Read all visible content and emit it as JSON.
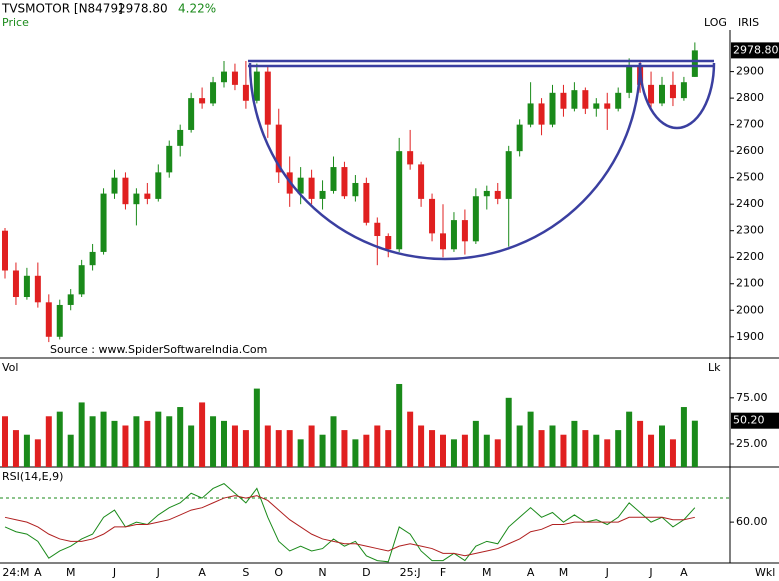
{
  "header": {
    "symbol": "TVSMOTOR [N8479]",
    "price": "2978.80",
    "change": "4.22%",
    "panel": "Price",
    "log": "LOG",
    "iris": "IRIS",
    "source": "Source : www.SpiderSoftwareIndia.Com"
  },
  "chart_data": [
    {
      "type": "candlestick",
      "up_color": "#1a8a1a",
      "down_color": "#e02020",
      "ohlc": [
        [
          2300,
          2310,
          2120,
          2150
        ],
        [
          2150,
          2180,
          2020,
          2050
        ],
        [
          2050,
          2160,
          2040,
          2130
        ],
        [
          2130,
          2180,
          2010,
          2030
        ],
        [
          2030,
          2060,
          1880,
          1900
        ],
        [
          1900,
          2040,
          1890,
          2020
        ],
        [
          2020,
          2080,
          2000,
          2060
        ],
        [
          2060,
          2190,
          2050,
          2170
        ],
        [
          2170,
          2250,
          2150,
          2220
        ],
        [
          2220,
          2460,
          2210,
          2440
        ],
        [
          2440,
          2530,
          2420,
          2500
        ],
        [
          2500,
          2520,
          2380,
          2400
        ],
        [
          2400,
          2460,
          2320,
          2440
        ],
        [
          2440,
          2480,
          2400,
          2420
        ],
        [
          2420,
          2550,
          2410,
          2520
        ],
        [
          2520,
          2640,
          2500,
          2620
        ],
        [
          2620,
          2700,
          2580,
          2680
        ],
        [
          2680,
          2820,
          2670,
          2800
        ],
        [
          2800,
          2840,
          2760,
          2780
        ],
        [
          2780,
          2880,
          2770,
          2860
        ],
        [
          2860,
          2940,
          2840,
          2900
        ],
        [
          2900,
          2930,
          2830,
          2850
        ],
        [
          2850,
          2940,
          2760,
          2790
        ],
        [
          2790,
          2930,
          2780,
          2900
        ],
        [
          2900,
          2920,
          2650,
          2700
        ],
        [
          2700,
          2760,
          2480,
          2520
        ],
        [
          2520,
          2580,
          2390,
          2440
        ],
        [
          2440,
          2540,
          2400,
          2500
        ],
        [
          2500,
          2530,
          2400,
          2420
        ],
        [
          2420,
          2490,
          2380,
          2450
        ],
        [
          2450,
          2580,
          2440,
          2540
        ],
        [
          2540,
          2560,
          2420,
          2430
        ],
        [
          2430,
          2510,
          2410,
          2480
        ],
        [
          2480,
          2500,
          2320,
          2330
        ],
        [
          2330,
          2350,
          2170,
          2280
        ],
        [
          2280,
          2290,
          2200,
          2230
        ],
        [
          2230,
          2650,
          2220,
          2600
        ],
        [
          2600,
          2680,
          2530,
          2550
        ],
        [
          2550,
          2560,
          2390,
          2420
        ],
        [
          2420,
          2440,
          2260,
          2290
        ],
        [
          2290,
          2400,
          2200,
          2230
        ],
        [
          2230,
          2370,
          2220,
          2340
        ],
        [
          2340,
          2380,
          2210,
          2260
        ],
        [
          2260,
          2460,
          2250,
          2430
        ],
        [
          2430,
          2470,
          2380,
          2450
        ],
        [
          2450,
          2480,
          2400,
          2420
        ],
        [
          2420,
          2620,
          2240,
          2600
        ],
        [
          2600,
          2720,
          2580,
          2700
        ],
        [
          2700,
          2860,
          2690,
          2780
        ],
        [
          2780,
          2800,
          2660,
          2700
        ],
        [
          2700,
          2850,
          2690,
          2820
        ],
        [
          2820,
          2850,
          2730,
          2760
        ],
        [
          2760,
          2860,
          2750,
          2830
        ],
        [
          2830,
          2840,
          2740,
          2760
        ],
        [
          2760,
          2800,
          2730,
          2780
        ],
        [
          2780,
          2820,
          2680,
          2760
        ],
        [
          2760,
          2840,
          2750,
          2820
        ],
        [
          2820,
          2950,
          2800,
          2920
        ],
        [
          2920,
          2940,
          2820,
          2850
        ],
        [
          2850,
          2900,
          2760,
          2780
        ],
        [
          2780,
          2880,
          2770,
          2850
        ],
        [
          2850,
          2900,
          2770,
          2800
        ],
        [
          2800,
          2880,
          2790,
          2860
        ],
        [
          2880,
          3010,
          2880,
          2980
        ]
      ],
      "ylim": [
        1820,
        3170
      ],
      "yticks": [
        1900,
        2000,
        2100,
        2200,
        2300,
        2400,
        2500,
        2600,
        2700,
        2800,
        2900
      ]
    },
    {
      "type": "volume",
      "label": "Vol",
      "unit": "Lk",
      "last_label": "50.20",
      "values": [
        55,
        40,
        35,
        30,
        55,
        60,
        35,
        70,
        55,
        60,
        50,
        45,
        55,
        50,
        60,
        55,
        65,
        45,
        70,
        55,
        50,
        45,
        40,
        85,
        45,
        40,
        40,
        30,
        45,
        35,
        55,
        40,
        30,
        35,
        45,
        40,
        90,
        60,
        45,
        40,
        35,
        30,
        35,
        50,
        35,
        30,
        75,
        45,
        60,
        40,
        45,
        35,
        50,
        40,
        35,
        30,
        40,
        60,
        50,
        35,
        45,
        30,
        65,
        50.2
      ],
      "ylim": [
        0,
        116
      ],
      "yticks": [
        {
          "value": 25,
          "label": "25.00"
        },
        {
          "value": 75,
          "label": "75.00"
        }
      ]
    },
    {
      "type": "line",
      "label": "RSI(14,E,9)",
      "frequency": "Wkl",
      "categories": [
        null,
        "24:M",
        null,
        "A",
        null,
        null,
        "M",
        null,
        null,
        null,
        "J",
        null,
        null,
        null,
        "J",
        null,
        null,
        null,
        "A",
        null,
        null,
        null,
        "S",
        null,
        null,
        "O",
        null,
        null,
        null,
        "N",
        null,
        null,
        null,
        "D",
        null,
        null,
        null,
        "25:J",
        null,
        null,
        "F",
        null,
        null,
        null,
        "M",
        null,
        null,
        null,
        "A",
        null,
        null,
        "M",
        null,
        null,
        null,
        "J",
        null,
        null,
        null,
        "J",
        null,
        null,
        "A",
        null
      ],
      "series": [
        {
          "color": "#1a8a1a",
          "values": [
            58,
            56,
            55,
            52,
            45,
            48,
            50,
            53,
            55,
            62,
            65,
            58,
            60,
            59,
            63,
            66,
            68,
            72,
            70,
            74,
            76,
            72,
            68,
            74,
            62,
            52,
            48,
            50,
            48,
            49,
            53,
            50,
            52,
            46,
            44,
            43.5,
            58,
            55,
            48,
            44,
            44,
            47,
            44,
            50,
            52,
            51,
            58,
            62,
            66,
            62,
            64,
            60,
            63,
            60,
            61,
            59,
            62,
            68,
            64,
            60,
            62,
            58,
            61,
            66
          ]
        },
        {
          "color": "#b02020",
          "values": [
            62,
            61,
            60,
            58,
            55,
            53,
            52,
            52,
            53,
            55,
            58,
            58,
            59,
            59,
            60,
            61,
            63,
            65,
            66,
            68,
            70,
            71,
            70,
            71,
            69,
            65,
            61,
            58,
            55,
            53,
            52,
            51,
            51,
            50,
            49,
            48,
            50,
            51,
            50,
            49,
            47,
            47,
            46,
            47,
            48,
            49,
            51,
            53,
            56,
            57,
            59,
            59,
            60,
            60,
            60,
            60,
            60,
            62,
            62,
            62,
            62,
            61,
            61,
            62
          ]
        }
      ],
      "ylim": [
        43,
        82.5
      ],
      "yticks": [
        {
          "value": 60,
          "label": "60.00"
        }
      ]
    }
  ]
}
